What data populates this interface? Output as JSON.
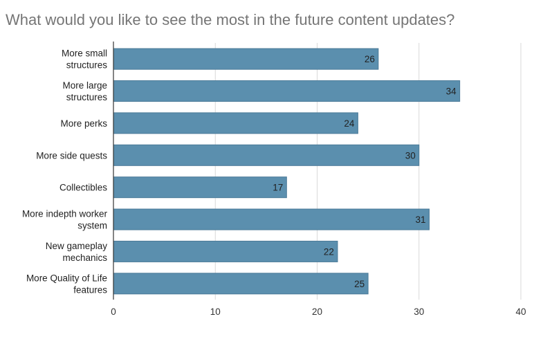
{
  "chart_data": {
    "type": "bar",
    "orientation": "horizontal",
    "title": "What would you like to see the most in the future content updates?",
    "categories": [
      [
        "More small",
        "structures"
      ],
      [
        "More large",
        "structures"
      ],
      [
        "More perks"
      ],
      [
        "More side quests"
      ],
      [
        "Collectibles"
      ],
      [
        "More indepth worker",
        "system"
      ],
      [
        "New gameplay",
        "mechanics"
      ],
      [
        "More Quality of Life",
        "features"
      ]
    ],
    "values": [
      26,
      34,
      24,
      30,
      17,
      31,
      22,
      25
    ],
    "xlim": [
      0,
      40
    ],
    "xticks": [
      0,
      10,
      20,
      30,
      40
    ],
    "xlabel": "",
    "ylabel": "",
    "grid": "vertical",
    "legend": "none",
    "data_labels": true,
    "bar_color": "#5b8fae",
    "bar_edge_color": "#4a7a98",
    "grid_color": "#d9d9d9",
    "axis_color": "#333333",
    "title_color": "#757575"
  }
}
